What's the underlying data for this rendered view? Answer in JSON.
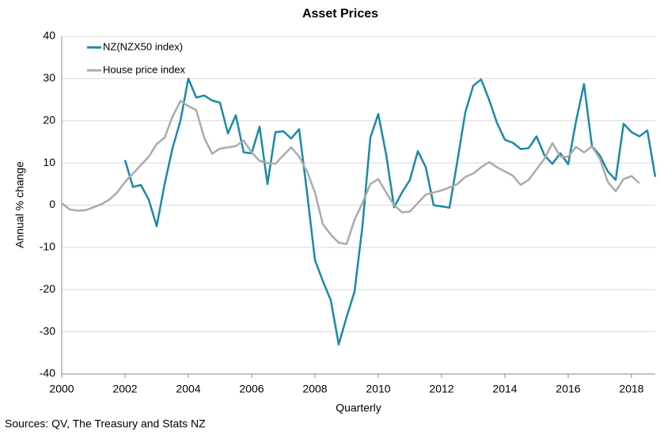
{
  "chart_data": {
    "type": "line",
    "title": "Asset Prices",
    "xlabel": "Quarterly",
    "ylabel": "Annual % change",
    "source": "Sources: QV, The Treasury and Stats NZ",
    "x": [
      2000,
      2000.25,
      2000.5,
      2000.75,
      2001,
      2001.25,
      2001.5,
      2001.75,
      2002,
      2002.25,
      2002.5,
      2002.75,
      2003,
      2003.25,
      2003.5,
      2003.75,
      2004,
      2004.25,
      2004.5,
      2004.75,
      2005,
      2005.25,
      2005.5,
      2005.75,
      2006,
      2006.25,
      2006.5,
      2006.75,
      2007,
      2007.25,
      2007.5,
      2007.75,
      2008,
      2008.25,
      2008.5,
      2008.75,
      2009,
      2009.25,
      2009.5,
      2009.75,
      2010,
      2010.25,
      2010.5,
      2010.75,
      2011,
      2011.25,
      2011.5,
      2011.75,
      2012,
      2012.25,
      2012.5,
      2012.75,
      2013,
      2013.25,
      2013.5,
      2013.75,
      2014,
      2014.25,
      2014.5,
      2014.75,
      2015,
      2015.25,
      2015.5,
      2015.75,
      2016,
      2016.25,
      2016.5,
      2016.75,
      2017,
      2017.25,
      2017.5,
      2017.75,
      2018,
      2018.25,
      2018.5,
      2018.75
    ],
    "series": [
      {
        "name": "NZ(NZX50 index)",
        "color": "#1a8aa6",
        "values": [
          null,
          null,
          null,
          null,
          null,
          null,
          null,
          null,
          10.7,
          4.3,
          4.8,
          1.3,
          -5,
          5,
          13.5,
          20,
          30,
          25.5,
          26,
          24.8,
          24.3,
          17,
          21.3,
          12.5,
          12.3,
          18.6,
          5,
          17.3,
          17.5,
          15.8,
          18,
          3,
          -13,
          -18,
          -22.5,
          -33,
          -26.5,
          -20.5,
          -5,
          16,
          21.6,
          12,
          -0.5,
          3,
          6,
          12.8,
          9,
          0,
          -0.3,
          -0.6,
          10.5,
          22,
          28.3,
          29.8,
          25,
          19.5,
          15.5,
          14.8,
          13.3,
          13.5,
          16.3,
          11.8,
          9.8,
          12.3,
          9.7,
          20,
          28.7,
          14,
          11.8,
          8,
          6,
          19.3,
          17.3,
          16.3,
          17.7,
          6.7
        ]
      },
      {
        "name": "House price index",
        "color": "#aaaaaa",
        "values": [
          0.5,
          -1,
          -1.3,
          -1.2,
          -0.5,
          0.2,
          1.3,
          3,
          5.5,
          7.5,
          9.5,
          11.5,
          14.5,
          16,
          21,
          24.7,
          23.5,
          22.5,
          16,
          12.2,
          13.4,
          13.7,
          14,
          15.3,
          12.5,
          10.5,
          10,
          9.8,
          11.8,
          13.7,
          11.5,
          8,
          3,
          -4.5,
          -7,
          -8.9,
          -9.2,
          -3.5,
          0.5,
          5,
          6.2,
          3,
          0,
          -1.7,
          -1.5,
          0.5,
          2.5,
          3,
          3.5,
          4.2,
          5,
          6.7,
          7.5,
          9,
          10.2,
          9,
          8,
          7,
          4.8,
          6,
          8.5,
          11,
          14.7,
          11.5,
          11.5,
          13.8,
          12.5,
          13.9,
          11,
          5.5,
          3.3,
          6.2,
          6.9,
          5.2,
          null,
          null
        ]
      }
    ],
    "xlim": [
      2000,
      2018.75
    ],
    "xticks": [
      2000,
      2002,
      2004,
      2006,
      2008,
      2010,
      2012,
      2014,
      2016,
      2018
    ],
    "ylim": [
      -40,
      40
    ],
    "yticks": [
      -40,
      -30,
      -20,
      -10,
      0,
      10,
      20,
      30,
      40
    ],
    "grid": true,
    "legend": "upper left"
  }
}
